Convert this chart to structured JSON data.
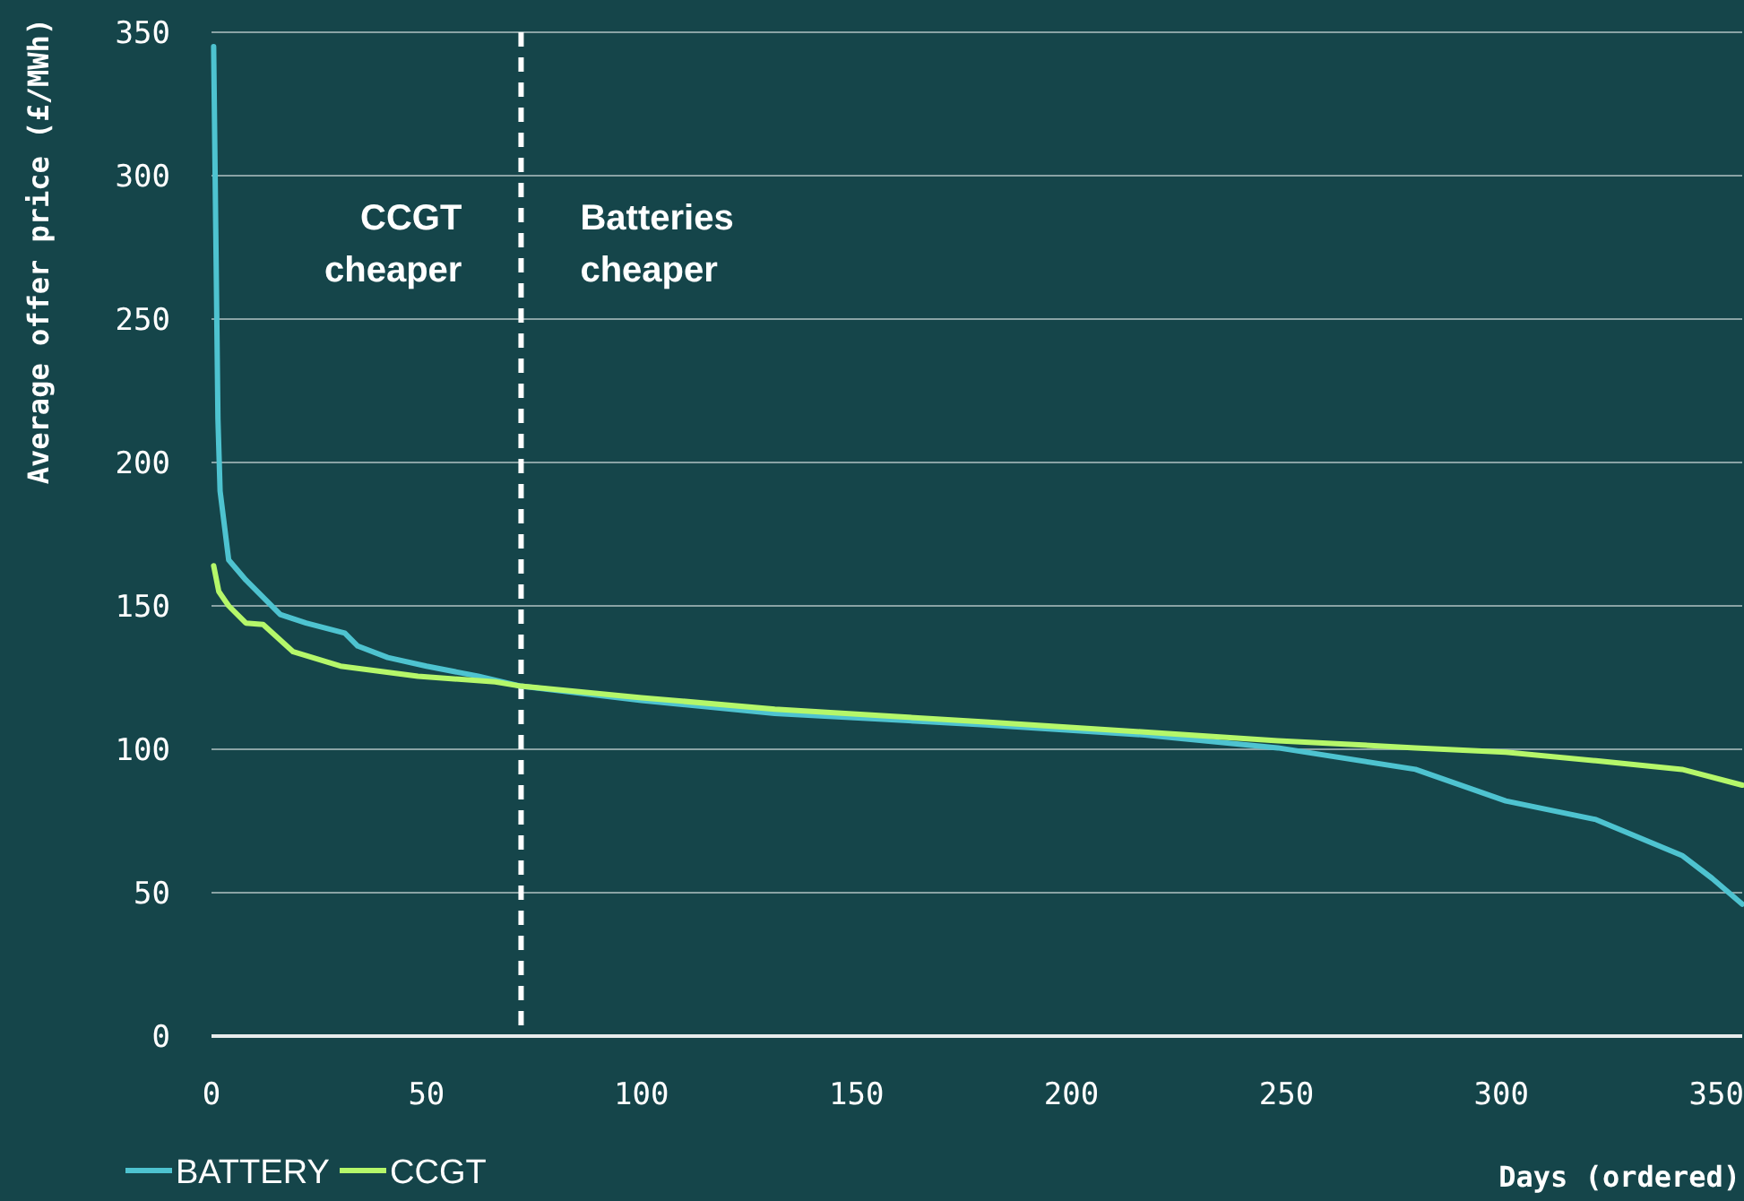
{
  "chart_data": {
    "type": "line",
    "xlabel": "Days (ordered)",
    "ylabel": "Average offer price (£/MWh)",
    "xlim": [
      0,
      356
    ],
    "xticks": [
      0,
      50,
      100,
      150,
      200,
      250,
      300,
      350
    ],
    "ylim": [
      0,
      350
    ],
    "yticks": [
      0,
      50,
      100,
      150,
      200,
      250,
      300,
      350
    ],
    "grid": "y",
    "legend": "bottom left",
    "line_style": "solid",
    "marker": "none",
    "ref_lines": [
      {
        "axis": "x",
        "value": 72,
        "color": "#ffffff",
        "line_style": "dashed"
      }
    ],
    "annotations": [
      "CCGT\ncheaper",
      "Batteries\ncheaper"
    ],
    "series": [
      {
        "name": "BATTERY",
        "color": "#4ec3d0",
        "x": [
          0.5,
          1,
          1.5,
          2,
          4,
          8,
          16,
          22,
          31,
          34,
          41,
          50,
          62,
          72,
          100,
          131,
          180,
          217,
          248,
          280,
          301,
          322,
          342,
          349,
          356
        ],
        "values": [
          345,
          280,
          215,
          190,
          166,
          159,
          147,
          144,
          140.5,
          136,
          132,
          129,
          125.5,
          122,
          117,
          112.5,
          108.5,
          105,
          100.5,
          93,
          82,
          75.5,
          63,
          55,
          46
        ]
      },
      {
        "name": "CCGT",
        "color": "#b5f76a",
        "x": [
          0.5,
          1.7,
          4,
          8,
          12,
          19,
          30,
          48,
          66,
          72,
          100,
          131,
          180,
          217,
          248,
          280,
          301,
          322,
          342,
          356
        ],
        "values": [
          164,
          155,
          150,
          144,
          143.5,
          134,
          129,
          125.5,
          123.5,
          122,
          118,
          114,
          109.5,
          106,
          103,
          100.5,
          99,
          96,
          93,
          87.5
        ]
      }
    ]
  }
}
